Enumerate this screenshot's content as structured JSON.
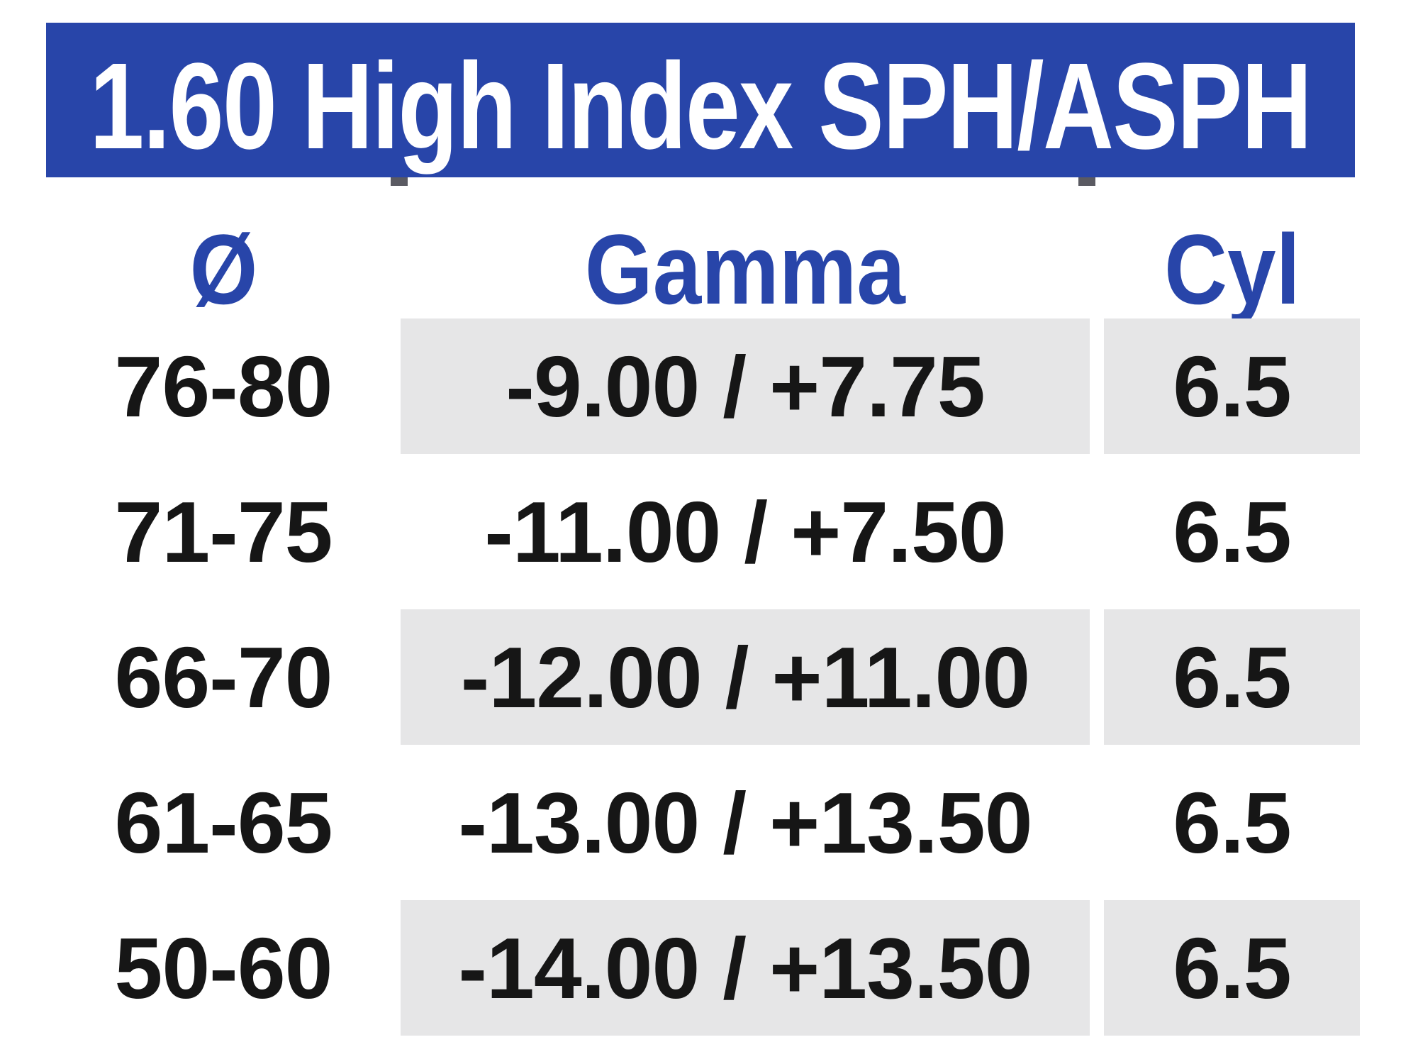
{
  "title": "1.60 High Index SPH/ASPH",
  "table": {
    "columns": [
      {
        "key": "diameter",
        "label": "Ø"
      },
      {
        "key": "gamma",
        "label": "Gamma"
      },
      {
        "key": "cyl",
        "label": "Cyl"
      }
    ],
    "rows": [
      {
        "diameter": "76-80",
        "gamma": "-9.00 / +7.75",
        "cyl": "6.5"
      },
      {
        "diameter": "71-75",
        "gamma": "-11.00 / +7.50",
        "cyl": "6.5"
      },
      {
        "diameter": "66-70",
        "gamma": "-12.00 / +11.00",
        "cyl": "6.5"
      },
      {
        "diameter": "61-65",
        "gamma": "-13.00 / +13.50",
        "cyl": "6.5"
      },
      {
        "diameter": "50-60",
        "gamma": "-14.00 / +13.50",
        "cyl": "6.5"
      }
    ]
  },
  "chart_data": {
    "type": "table",
    "title": "1.60 High Index SPH/ASPH",
    "columns": [
      "Ø",
      "Gamma",
      "Cyl"
    ],
    "rows": [
      [
        "76-80",
        "-9.00 / +7.75",
        "6.5"
      ],
      [
        "71-75",
        "-11.00 / +7.50",
        "6.5"
      ],
      [
        "66-70",
        "-12.00 / +11.00",
        "6.5"
      ],
      [
        "61-65",
        "-13.00 / +13.50",
        "6.5"
      ],
      [
        "50-60",
        "-14.00 / +13.50",
        "6.5"
      ]
    ]
  },
  "colors": {
    "banner_blue": "#2845a9",
    "header_text_blue": "#2845a9",
    "row_shade_gray": "#e6e6e7",
    "text_black": "#161616",
    "background": "#ffffff"
  }
}
